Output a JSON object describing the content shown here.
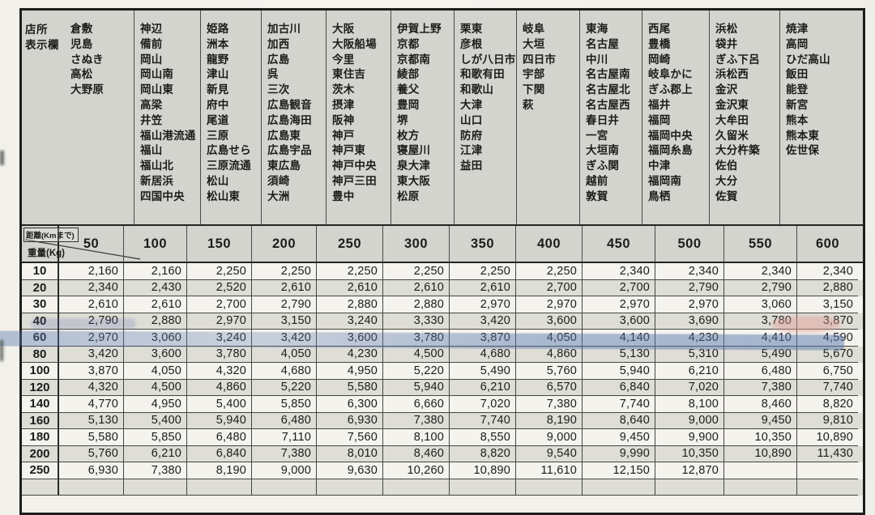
{
  "table": {
    "corner": {
      "station_label_lines": [
        "店所",
        "表示欄"
      ],
      "distance_label": "距離(Kmまで)",
      "weight_label": "重量(Kg)"
    },
    "columns": [
      {
        "distance": "50",
        "stations": [
          "倉敷",
          "児島",
          "さぬき",
          "高松",
          "大野原"
        ]
      },
      {
        "distance": "100",
        "stations": [
          "神辺",
          "備前",
          "岡山",
          "岡山南",
          "岡山東",
          "高梁",
          "井笠",
          "福山港流通",
          "福山",
          "福山北",
          "新居浜",
          "四国中央"
        ]
      },
      {
        "distance": "150",
        "stations": [
          "姫路",
          "洲本",
          "龍野",
          "津山",
          "新見",
          "府中",
          "尾道",
          "三原",
          "広島せら",
          "三原流通",
          "松山",
          "松山東"
        ]
      },
      {
        "distance": "200",
        "stations": [
          "加古川",
          "加西",
          "広島",
          "呉",
          "三次",
          "広島観音",
          "広島海田",
          "広島東",
          "広島宇品",
          "東広島",
          "須崎",
          "大洲"
        ]
      },
      {
        "distance": "250",
        "stations": [
          "大阪",
          "大阪船場",
          "今里",
          "東住吉",
          "茨木",
          "摂津",
          "阪神",
          "神戸",
          "神戸東",
          "神戸中央",
          "神戸三田",
          "豊中"
        ]
      },
      {
        "distance": "300",
        "stations": [
          "伊賀上野",
          "京都",
          "京都南",
          "綾部",
          "養父",
          "豊岡",
          "堺",
          "枚方",
          "寝屋川",
          "泉大津",
          "東大阪",
          "松原"
        ]
      },
      {
        "distance": "350",
        "stations": [
          "栗東",
          "彦根",
          "しが八日市",
          "和歌有田",
          "和歌山",
          "大津",
          "山口",
          "防府",
          "江津",
          "益田"
        ]
      },
      {
        "distance": "400",
        "stations": [
          "岐阜",
          "大垣",
          "四日市",
          "宇部",
          "下関",
          "萩"
        ]
      },
      {
        "distance": "450",
        "stations": [
          "東海",
          "名古屋",
          "中川",
          "名古屋南",
          "名古屋北",
          "名古屋西",
          "春日井",
          "一宮",
          "大垣南",
          "ぎふ関",
          "越前",
          "敦賀"
        ]
      },
      {
        "distance": "500",
        "stations": [
          "西尾",
          "豊橋",
          "岡崎",
          "岐阜かに",
          "ぎふ郡上",
          "福井",
          "福岡",
          "福岡中央",
          "福岡糸島",
          "中津",
          "福岡南",
          "鳥栖"
        ]
      },
      {
        "distance": "550",
        "stations": [
          "浜松",
          "袋井",
          "ぎふ下呂",
          "浜松西",
          "金沢",
          "金沢東",
          "大牟田",
          "久留米",
          "大分杵築",
          "佐伯",
          "大分",
          "佐賀"
        ]
      },
      {
        "distance": "600",
        "stations": [
          "焼津",
          "高岡",
          "ひだ高山",
          "飯田",
          "能登",
          "新宮",
          "熊本",
          "熊本東",
          "佐世保"
        ]
      }
    ],
    "rows": [
      {
        "weight": "10",
        "values": [
          "2,160",
          "2,160",
          "2,250",
          "2,250",
          "2,250",
          "2,250",
          "2,250",
          "2,250",
          "2,340",
          "2,340",
          "2,340",
          "2,340"
        ]
      },
      {
        "weight": "20",
        "values": [
          "2,340",
          "2,430",
          "2,520",
          "2,610",
          "2,610",
          "2,610",
          "2,610",
          "2,700",
          "2,700",
          "2,790",
          "2,790",
          "2,880"
        ]
      },
      {
        "weight": "30",
        "values": [
          "2,610",
          "2,610",
          "2,700",
          "2,790",
          "2,880",
          "2,880",
          "2,970",
          "2,970",
          "2,970",
          "2,970",
          "3,060",
          "3,150"
        ]
      },
      {
        "weight": "40",
        "values": [
          "2,790",
          "2,880",
          "2,970",
          "3,150",
          "3,240",
          "3,330",
          "3,420",
          "3,600",
          "3,600",
          "3,690",
          "3,780",
          "3,870"
        ]
      },
      {
        "weight": "60",
        "values": [
          "2,970",
          "3,060",
          "3,240",
          "3,420",
          "3,600",
          "3,780",
          "3,870",
          "4,050",
          "4,140",
          "4,230",
          "4,410",
          "4,590"
        ]
      },
      {
        "weight": "80",
        "values": [
          "3,420",
          "3,600",
          "3,780",
          "4,050",
          "4,230",
          "4,500",
          "4,680",
          "4,860",
          "5,130",
          "5,310",
          "5,490",
          "5,670"
        ]
      },
      {
        "weight": "100",
        "values": [
          "3,870",
          "4,050",
          "4,320",
          "4,680",
          "4,950",
          "5,220",
          "5,490",
          "5,760",
          "5,940",
          "6,210",
          "6,480",
          "6,750"
        ]
      },
      {
        "weight": "120",
        "values": [
          "4,320",
          "4,500",
          "4,860",
          "5,220",
          "5,580",
          "5,940",
          "6,210",
          "6,570",
          "6,840",
          "7,020",
          "7,380",
          "7,740"
        ]
      },
      {
        "weight": "140",
        "values": [
          "4,770",
          "4,950",
          "5,400",
          "5,850",
          "6,300",
          "6,660",
          "7,020",
          "7,380",
          "7,740",
          "8,100",
          "8,460",
          "8,820"
        ]
      },
      {
        "weight": "160",
        "values": [
          "5,130",
          "5,400",
          "5,940",
          "6,480",
          "6,930",
          "7,380",
          "7,740",
          "8,190",
          "8,640",
          "9,000",
          "9,450",
          "9,810"
        ]
      },
      {
        "weight": "180",
        "values": [
          "5,580",
          "5,850",
          "6,480",
          "7,110",
          "7,560",
          "8,100",
          "8,550",
          "9,000",
          "9,450",
          "9,900",
          "10,350",
          "10,890"
        ]
      },
      {
        "weight": "200",
        "values": [
          "5,760",
          "6,210",
          "6,840",
          "7,380",
          "8,010",
          "8,460",
          "8,820",
          "9,540",
          "9,990",
          "10,350",
          "10,890",
          "11,430"
        ]
      },
      {
        "weight": "250",
        "values": [
          "6,930",
          "7,380",
          "8,190",
          "9,000",
          "9,630",
          "10,260",
          "10,890",
          "11,610",
          "12,150",
          "12,870",
          "",
          ""
        ]
      }
    ]
  },
  "annotations": {
    "highlighted_weight_row": "80",
    "highlighter_color": "#5676ac",
    "pink_smudge_color": "#e09a92",
    "blue_smudge_color": "#5a6eaf"
  }
}
